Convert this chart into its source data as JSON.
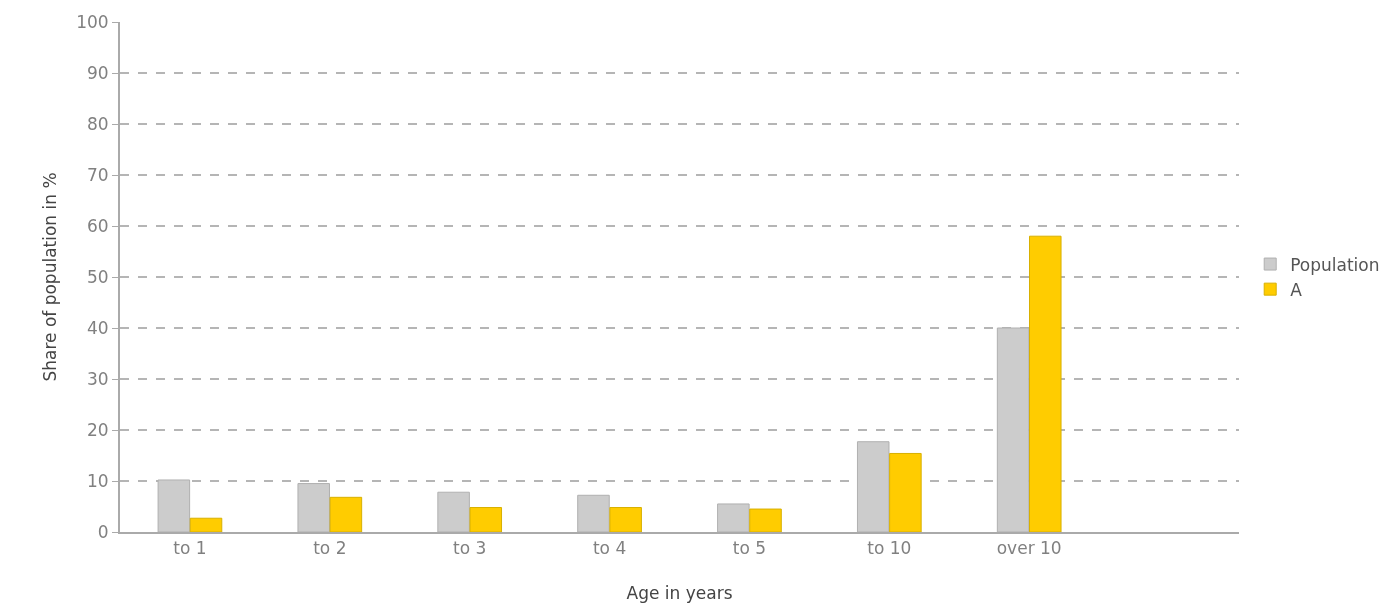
{
  "chart_data": {
    "type": "bar",
    "xlabel": "Age in years",
    "ylabel": "Share of population in %",
    "categories": [
      "to 1",
      "to 2",
      "to 3",
      "to 4",
      "to 5",
      "to 10",
      "over 10",
      null
    ],
    "series": [
      {
        "name": "Population",
        "color": "#cccccc",
        "values": [
          10.2,
          9.5,
          7.8,
          7.2,
          5.5,
          17.7,
          40,
          null
        ]
      },
      {
        "name": "A",
        "color": "#ffcc00",
        "values": [
          2.7,
          6.8,
          4.8,
          4.8,
          4.5,
          15.4,
          58,
          null
        ]
      }
    ],
    "ylim": [
      0,
      100
    ],
    "yticks": [
      0,
      10,
      20,
      30,
      40,
      50,
      60,
      70,
      80,
      90,
      100
    ],
    "grid": "y",
    "legend": "right"
  }
}
